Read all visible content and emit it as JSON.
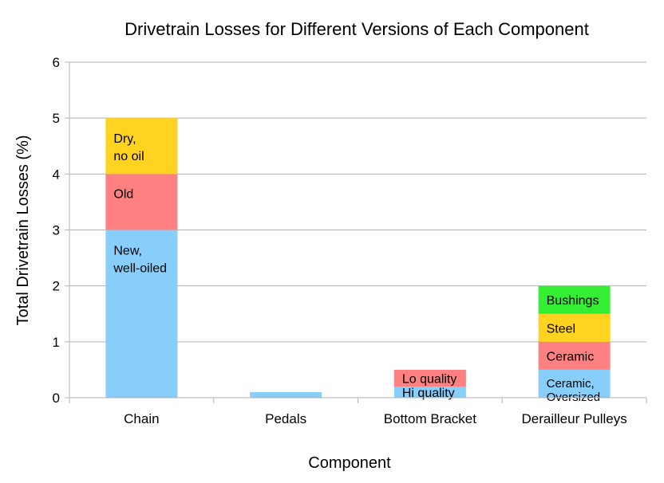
{
  "chart_data": {
    "type": "bar",
    "stacked": true,
    "title": "Drivetrain Losses for Different Versions of Each Component",
    "xlabel": "Component",
    "ylabel": "Total Drivetrain Losses (%)",
    "ylim": [
      0,
      6
    ],
    "yticks": [
      0,
      1,
      2,
      3,
      4,
      5,
      6
    ],
    "grid": true,
    "legend": "none",
    "categories": [
      "Chain",
      "Pedals",
      "Bottom Bracket",
      "Derailleur Pulleys"
    ],
    "stacks": [
      {
        "category": "Chain",
        "segments": [
          {
            "label": [
              "New,",
              "well-oiled"
            ],
            "value": 3.0,
            "color": "#87cefa"
          },
          {
            "label": [
              "Old"
            ],
            "value": 1.0,
            "color": "#ff8080"
          },
          {
            "label": [
              "Dry,",
              "no oil"
            ],
            "value": 1.0,
            "color": "#ffd320"
          }
        ]
      },
      {
        "category": "Pedals",
        "segments": [
          {
            "label": [],
            "value": 0.1,
            "color": "#87cefa"
          }
        ]
      },
      {
        "category": "Bottom Bracket",
        "segments": [
          {
            "label": [
              "Hi quality"
            ],
            "value": 0.2,
            "color": "#87cefa"
          },
          {
            "label": [
              "Lo quality"
            ],
            "value": 0.3,
            "color": "#ff8080"
          }
        ]
      },
      {
        "category": "Derailleur Pulleys",
        "segments": [
          {
            "label": [
              "Ceramic,",
              "Oversized"
            ],
            "value": 0.5,
            "color": "#87cefa"
          },
          {
            "label": [
              "Ceramic"
            ],
            "value": 0.5,
            "color": "#ff8080"
          },
          {
            "label": [
              "Steel"
            ],
            "value": 0.5,
            "color": "#ffd320"
          },
          {
            "label": [
              "Bushings"
            ],
            "value": 0.5,
            "color": "#33ee33"
          }
        ]
      }
    ]
  }
}
